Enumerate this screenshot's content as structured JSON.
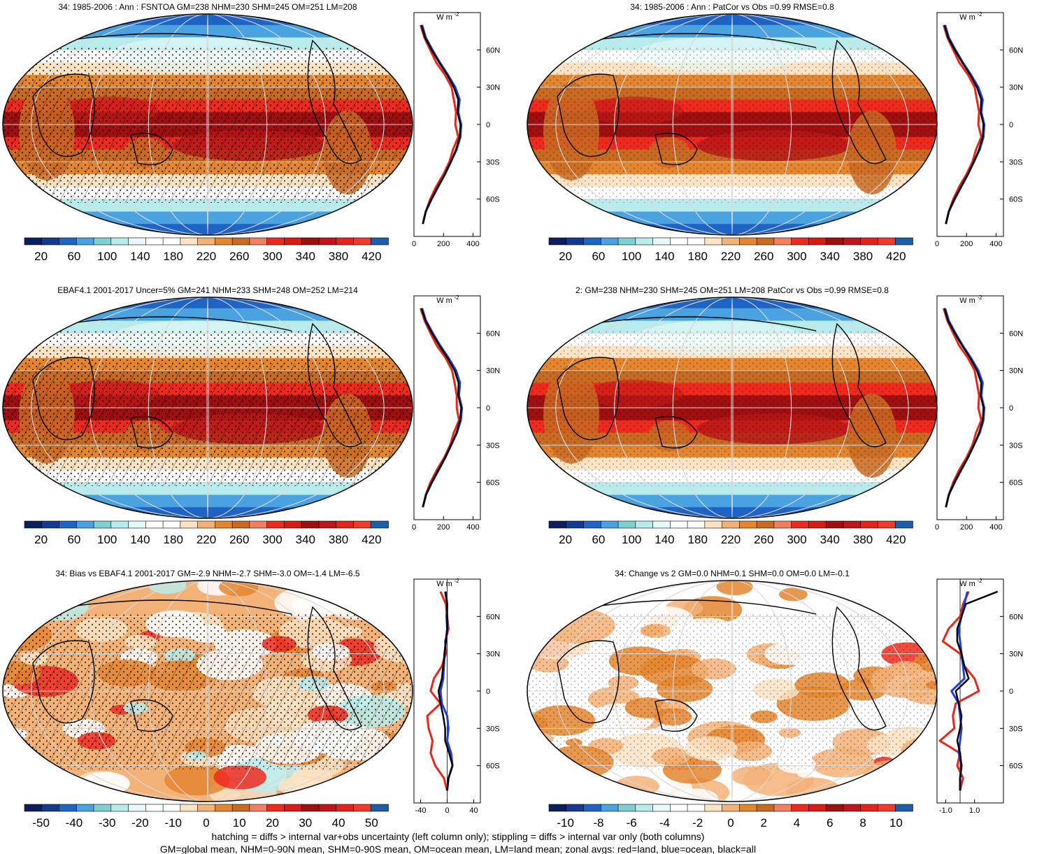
{
  "footer": {
    "line1": "hatching = diffs > internal var+obs uncertainty (left column only); stippling = diffs > internal var only (both columns)",
    "line2": "GM=global mean, NHM=0-90N mean, SHM=0-90S mean, OM=ocean mean, LM=land mean; zonal avgs: red=land, blue=ocean, black=all"
  },
  "colors": {
    "land": "#e8261a",
    "ocean": "#1f3fd8",
    "all": "#000000",
    "flux_palette": [
      "#0b1f5c",
      "#123a8f",
      "#1f63c4",
      "#4aa3e0",
      "#7fd0d0",
      "#b8ecec",
      "#e6f8f8",
      "#ffffff",
      "#ffffff",
      "#fbe3c4",
      "#f3b277",
      "#e4852f",
      "#c86a22",
      "#f08060",
      "#ee2a1e",
      "#d61c15",
      "#9e0f10",
      "#c0141a",
      "#e4231d",
      "#f03a2a",
      "#1d5ea8"
    ],
    "bias_palette": [
      "#0b1f5c",
      "#123a8f",
      "#1f63c4",
      "#4aa3e0",
      "#7fd0d0",
      "#b8ecec",
      "#e6f8f8",
      "#ffffff",
      "#ffffff",
      "#fbe3c4",
      "#f3b277",
      "#e4852f",
      "#c86a22",
      "#f08060",
      "#ee2a1e",
      "#d61c15",
      "#9e0f10",
      "#c0141a",
      "#e4231d",
      "#f03a2a",
      "#1d5ea8"
    ]
  },
  "chart_data": [
    {
      "type": "heatmap",
      "title": "34: 1985-2006 : Ann : FSNTOA GM=238 NHM=230 SHM=245 OM=251 LM=208",
      "units": "W m",
      "units_exp": "-2",
      "colorbar_ticks": [
        "20",
        "60",
        "100",
        "140",
        "180",
        "220",
        "260",
        "300",
        "340",
        "380",
        "420"
      ],
      "colorbar_range": [
        0,
        440
      ],
      "zonal_xticks": [
        "0",
        "200",
        "400"
      ],
      "zonal_xrange": [
        0,
        450
      ],
      "zonal_yticks": [
        "60N",
        "30N",
        "0",
        "30S",
        "60S"
      ],
      "hatching": true,
      "zonal": {
        "lat": [
          80,
          70,
          60,
          50,
          40,
          30,
          20,
          10,
          0,
          -10,
          -20,
          -30,
          -40,
          -50,
          -60,
          -70,
          -80
        ],
        "land": [
          45,
          70,
          110,
          150,
          210,
          255,
          270,
          285,
          280,
          300,
          265,
          240,
          200,
          150,
          110,
          80,
          60
        ],
        "ocean": [
          55,
          80,
          125,
          175,
          230,
          280,
          310,
          300,
          320,
          315,
          290,
          250,
          210,
          165,
          120,
          80,
          60
        ],
        "all": [
          50,
          75,
          120,
          170,
          225,
          270,
          300,
          295,
          315,
          310,
          285,
          250,
          210,
          162,
          118,
          80,
          60
        ]
      }
    },
    {
      "type": "heatmap",
      "title": "34: 1985-2006 : Ann : PatCor vs Obs =0.99 RMSE=0.8",
      "units": "W m",
      "units_exp": "-2",
      "colorbar_ticks": [
        "20",
        "60",
        "100",
        "140",
        "180",
        "220",
        "260",
        "300",
        "340",
        "380",
        "420"
      ],
      "colorbar_range": [
        0,
        440
      ],
      "zonal_xticks": [
        "0",
        "200",
        "400"
      ],
      "zonal_xrange": [
        0,
        450
      ],
      "zonal_yticks": [
        "60N",
        "30N",
        "0",
        "30S",
        "60S"
      ],
      "hatching": false,
      "zonal": {
        "lat": [
          80,
          70,
          60,
          50,
          40,
          30,
          20,
          10,
          0,
          -10,
          -20,
          -30,
          -40,
          -50,
          -60,
          -70,
          -80
        ],
        "land": [
          45,
          70,
          110,
          150,
          210,
          255,
          270,
          285,
          280,
          300,
          265,
          240,
          200,
          150,
          110,
          80,
          60
        ],
        "ocean": [
          55,
          80,
          125,
          175,
          230,
          280,
          310,
          300,
          320,
          315,
          290,
          250,
          210,
          165,
          120,
          80,
          60
        ],
        "all": [
          50,
          75,
          120,
          170,
          225,
          270,
          300,
          295,
          315,
          310,
          285,
          250,
          210,
          162,
          118,
          80,
          60
        ]
      }
    },
    {
      "type": "heatmap",
      "title": "EBAF4.1 2001-2017 Uncer=5% GM=241 NHM=233 SHM=248 OM=252 LM=214",
      "units": "W m",
      "units_exp": "-2",
      "colorbar_ticks": [
        "20",
        "60",
        "100",
        "140",
        "180",
        "220",
        "260",
        "300",
        "340",
        "380",
        "420"
      ],
      "colorbar_range": [
        0,
        440
      ],
      "zonal_xticks": [
        "0",
        "200",
        "400"
      ],
      "zonal_xrange": [
        0,
        450
      ],
      "zonal_yticks": [
        "60N",
        "30N",
        "0",
        "30S",
        "60S"
      ],
      "hatching": true,
      "zonal": {
        "lat": [
          80,
          70,
          60,
          50,
          40,
          30,
          20,
          10,
          0,
          -10,
          -20,
          -30,
          -40,
          -50,
          -60,
          -70,
          -80
        ],
        "land": [
          45,
          72,
          112,
          155,
          215,
          258,
          275,
          290,
          290,
          305,
          270,
          245,
          205,
          155,
          112,
          80,
          60
        ],
        "ocean": [
          55,
          82,
          128,
          178,
          235,
          285,
          312,
          305,
          325,
          318,
          292,
          252,
          212,
          168,
          122,
          82,
          60
        ],
        "all": [
          50,
          78,
          122,
          172,
          228,
          275,
          302,
          300,
          320,
          312,
          288,
          252,
          212,
          165,
          120,
          82,
          60
        ]
      }
    },
    {
      "type": "heatmap",
      "title": "2: GM=238 NHM=230 SHM=245 OM=251 LM=208 PatCor vs Obs =0.99 RMSE=0.8",
      "units": "W m",
      "units_exp": "-2",
      "colorbar_ticks": [
        "20",
        "60",
        "100",
        "140",
        "180",
        "220",
        "260",
        "300",
        "340",
        "380",
        "420"
      ],
      "colorbar_range": [
        0,
        440
      ],
      "zonal_xticks": [
        "0",
        "200",
        "400"
      ],
      "zonal_xrange": [
        0,
        450
      ],
      "zonal_yticks": [
        "60N",
        "30N",
        "0",
        "30S",
        "60S"
      ],
      "hatching": false,
      "zonal": {
        "lat": [
          80,
          70,
          60,
          50,
          40,
          30,
          20,
          10,
          0,
          -10,
          -20,
          -30,
          -40,
          -50,
          -60,
          -70,
          -80
        ],
        "land": [
          45,
          70,
          110,
          150,
          210,
          255,
          270,
          285,
          280,
          300,
          265,
          240,
          200,
          150,
          110,
          80,
          60
        ],
        "ocean": [
          55,
          80,
          125,
          175,
          230,
          280,
          310,
          300,
          320,
          315,
          290,
          250,
          210,
          165,
          120,
          80,
          60
        ],
        "all": [
          50,
          75,
          120,
          170,
          225,
          270,
          300,
          295,
          315,
          310,
          285,
          250,
          210,
          162,
          118,
          80,
          60
        ]
      }
    },
    {
      "type": "heatmap",
      "title": "34: Bias vs EBAF4.1 2001-2017 GM=-2.9 NHM=-2.7 SHM=-3.0 OM=-1.4 LM=-6.5",
      "units": "W m",
      "units_exp": "-2",
      "colorbar_ticks": [
        "-50",
        "-40",
        "-30",
        "-20",
        "-10",
        "0",
        "10",
        "20",
        "30",
        "40",
        "50"
      ],
      "colorbar_range": [
        -55,
        55
      ],
      "zonal_xticks": [
        "-40",
        "0",
        "40"
      ],
      "zonal_xrange": [
        -50,
        50
      ],
      "zonal_yticks": [
        "60N",
        "30N",
        "0",
        "30S",
        "60S"
      ],
      "hatching": true,
      "zonal": {
        "lat": [
          80,
          70,
          60,
          50,
          40,
          30,
          20,
          10,
          0,
          -10,
          -20,
          -30,
          -40,
          -50,
          -60,
          -70,
          -80
        ],
        "land": [
          -10,
          -2,
          0,
          2,
          -3,
          -2,
          -8,
          -20,
          -25,
          -10,
          -30,
          -28,
          -22,
          -25,
          -18,
          -5,
          0
        ],
        "ocean": [
          -2,
          0,
          -1,
          0,
          -2,
          -4,
          -5,
          -6,
          -10,
          -8,
          0,
          2,
          0,
          6,
          8,
          2,
          0
        ],
        "all": [
          -3,
          0,
          0,
          0,
          -2,
          -4,
          -6,
          -8,
          -13,
          -10,
          -6,
          -3,
          -3,
          3,
          8,
          2,
          0
        ]
      }
    },
    {
      "type": "heatmap",
      "title": "34: Change vs 2 GM=0.0 NHM=0.1 SHM=0.0 OM=0.0 LM=-0.1",
      "units": "W m",
      "units_exp": "-2",
      "colorbar_ticks": [
        "-10",
        "-8",
        "-6",
        "-4",
        "-2",
        "0",
        "2",
        "4",
        "6",
        "8",
        "10"
      ],
      "colorbar_range": [
        -11,
        11
      ],
      "zonal_xticks": [
        "-1.0",
        "1.0"
      ],
      "zonal_xrange": [
        -1.6,
        3.0
      ],
      "zonal_yticks": [
        "60N",
        "30N",
        "0",
        "30S",
        "60S"
      ],
      "hatching": false,
      "zonal": {
        "lat": [
          80,
          70,
          60,
          50,
          40,
          30,
          20,
          10,
          0,
          -10,
          -20,
          -30,
          -40,
          -50,
          -60,
          -70,
          -80
        ],
        "land": [
          0.6,
          0.2,
          0.0,
          -0.8,
          -1.2,
          0.0,
          0.3,
          1.0,
          1.3,
          -0.3,
          -0.5,
          -0.4,
          -1.4,
          0.0,
          -0.2,
          0.2,
          0.0
        ],
        "ocean": [
          0.5,
          0.3,
          0.1,
          -0.1,
          0.0,
          0.1,
          0.2,
          0.3,
          -0.6,
          -0.1,
          0.0,
          0.1,
          0.0,
          -0.1,
          0.1,
          0.0,
          0.0
        ],
        "all": [
          2.6,
          0.4,
          0.1,
          -0.2,
          -0.2,
          0.1,
          0.3,
          0.6,
          -0.3,
          -0.1,
          0.1,
          0.0,
          -0.2,
          0.0,
          0.1,
          0.0,
          0.0
        ]
      }
    }
  ]
}
